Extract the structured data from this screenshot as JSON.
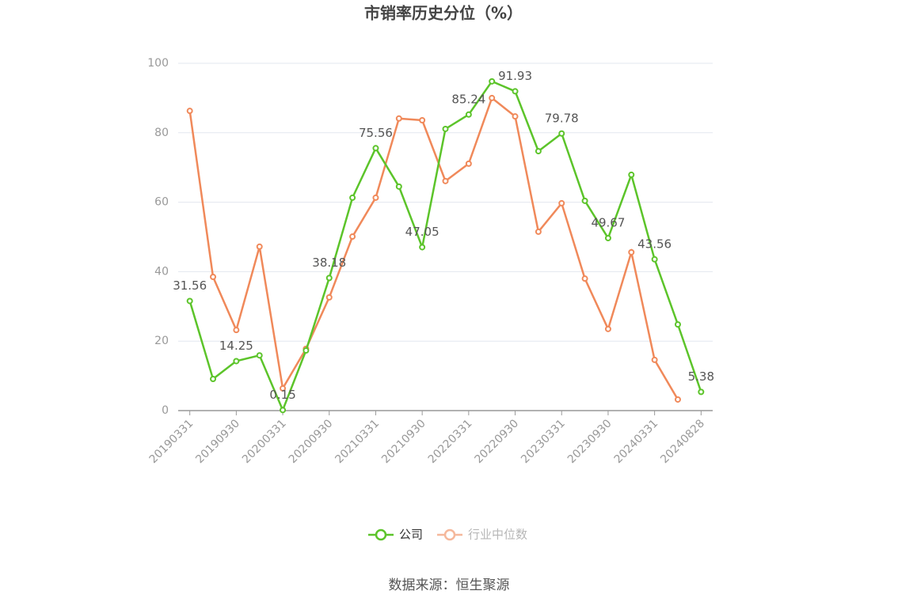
{
  "chart_data": {
    "type": "line",
    "title": "市销率历史分位（%）",
    "categories": [
      "20190331",
      null,
      "20190930",
      null,
      "20200331",
      null,
      "20200930",
      null,
      "20210331",
      null,
      "20210930",
      null,
      "20220331",
      null,
      "20220930",
      null,
      "20230331",
      null,
      "20230930",
      null,
      "20240331",
      null,
      "20240828"
    ],
    "series": [
      {
        "name": "公司",
        "color": "#5cc42a",
        "values": [
          31.56,
          9.1,
          14.25,
          15.9,
          0.15,
          17.3,
          38.18,
          61.3,
          75.56,
          64.5,
          47.05,
          81.1,
          85.24,
          94.8,
          91.93,
          74.7,
          79.78,
          60.4,
          49.67,
          67.9,
          43.56,
          24.8,
          5.38
        ],
        "value_labels": [
          "31.56",
          null,
          "14.25",
          null,
          "0.15",
          null,
          "38.18",
          null,
          "75.56",
          null,
          "47.05",
          null,
          "85.24",
          null,
          "91.93",
          null,
          "79.78",
          null,
          "49.67",
          null,
          "43.56",
          null,
          "5.38"
        ]
      },
      {
        "name": "行业中位数",
        "color": "#f0895a",
        "values": [
          86.3,
          38.5,
          23.2,
          47.2,
          6.4,
          17.8,
          32.6,
          50.1,
          61.3,
          84.1,
          83.6,
          66.1,
          71.1,
          90,
          84.7,
          51.5,
          59.7,
          38,
          23.5,
          45.6,
          14.6,
          3.2,
          null
        ]
      }
    ],
    "ylim": [
      0,
      100
    ],
    "yticks": [
      0,
      20,
      40,
      60,
      80,
      100
    ],
    "grid": true,
    "source": "数据来源：恒生聚源"
  }
}
